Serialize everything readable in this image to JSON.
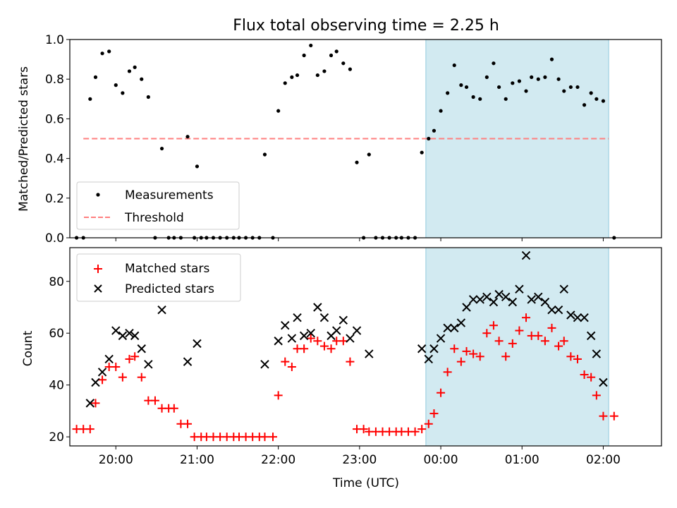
{
  "chart_data": [
    {
      "type": "scatter",
      "title": "Flux total observing time = 2.25 h",
      "xlabel": "",
      "ylabel": "Matched/Predicted stars",
      "ylim": [
        0.0,
        1.0
      ],
      "yticks": [
        "0.0",
        "0.2",
        "0.4",
        "0.6",
        "0.8",
        "1.0"
      ],
      "xlim": [
        "19:26",
        "02:43"
      ],
      "legend_position": "lower-left",
      "shaded_interval": [
        "23:49",
        "02:04"
      ],
      "shaded_color": "#add8e6",
      "threshold": {
        "name": "Threshold",
        "value": 0.5,
        "x": [
          "19:36",
          "02:04"
        ],
        "color": "#ff7f7f",
        "style": "dashed"
      },
      "series": [
        {
          "name": "Measurements",
          "marker": "dot",
          "color": "#000000",
          "points": [
            [
              "19:31",
              0.0
            ],
            [
              "19:36",
              0.0
            ],
            [
              "19:41",
              0.7
            ],
            [
              "19:45",
              0.81
            ],
            [
              "19:50",
              0.93
            ],
            [
              "19:55",
              0.94
            ],
            [
              "20:00",
              0.77
            ],
            [
              "20:05",
              0.73
            ],
            [
              "20:10",
              0.84
            ],
            [
              "20:14",
              0.86
            ],
            [
              "20:19",
              0.8
            ],
            [
              "20:24",
              0.71
            ],
            [
              "20:29",
              0.0
            ],
            [
              "20:34",
              0.45
            ],
            [
              "20:39",
              0.0
            ],
            [
              "20:43",
              0.0
            ],
            [
              "20:48",
              0.0
            ],
            [
              "20:53",
              0.51
            ],
            [
              "20:58",
              0.0
            ],
            [
              "21:00",
              0.36
            ],
            [
              "21:03",
              0.0
            ],
            [
              "21:07",
              0.0
            ],
            [
              "21:12",
              0.0
            ],
            [
              "21:17",
              0.0
            ],
            [
              "21:22",
              0.0
            ],
            [
              "21:27",
              0.0
            ],
            [
              "21:31",
              0.0
            ],
            [
              "21:36",
              0.0
            ],
            [
              "21:41",
              0.0
            ],
            [
              "21:46",
              0.0
            ],
            [
              "21:50",
              0.42
            ],
            [
              "21:56",
              0.0
            ],
            [
              "22:00",
              0.64
            ],
            [
              "22:05",
              0.78
            ],
            [
              "22:10",
              0.81
            ],
            [
              "22:14",
              0.82
            ],
            [
              "22:19",
              0.92
            ],
            [
              "22:24",
              0.97
            ],
            [
              "22:29",
              0.82
            ],
            [
              "22:34",
              0.84
            ],
            [
              "22:39",
              0.92
            ],
            [
              "22:43",
              0.94
            ],
            [
              "22:48",
              0.88
            ],
            [
              "22:53",
              0.85
            ],
            [
              "22:58",
              0.38
            ],
            [
              "23:03",
              0.0
            ],
            [
              "23:07",
              0.42
            ],
            [
              "23:12",
              0.0
            ],
            [
              "23:17",
              0.0
            ],
            [
              "23:22",
              0.0
            ],
            [
              "23:27",
              0.0
            ],
            [
              "23:31",
              0.0
            ],
            [
              "23:36",
              0.0
            ],
            [
              "23:41",
              0.0
            ],
            [
              "23:46",
              0.43
            ],
            [
              "23:51",
              0.5
            ],
            [
              "23:55",
              0.54
            ],
            [
              "00:00",
              0.64
            ],
            [
              "00:05",
              0.73
            ],
            [
              "00:10",
              0.87
            ],
            [
              "00:15",
              0.77
            ],
            [
              "00:19",
              0.76
            ],
            [
              "00:24",
              0.71
            ],
            [
              "00:29",
              0.7
            ],
            [
              "00:34",
              0.81
            ],
            [
              "00:39",
              0.88
            ],
            [
              "00:43",
              0.76
            ],
            [
              "00:48",
              0.7
            ],
            [
              "00:53",
              0.78
            ],
            [
              "00:58",
              0.79
            ],
            [
              "01:03",
              0.74
            ],
            [
              "01:07",
              0.81
            ],
            [
              "01:12",
              0.8
            ],
            [
              "01:17",
              0.81
            ],
            [
              "01:22",
              0.9
            ],
            [
              "01:27",
              0.8
            ],
            [
              "01:31",
              0.74
            ],
            [
              "01:36",
              0.76
            ],
            [
              "01:41",
              0.76
            ],
            [
              "01:46",
              0.67
            ],
            [
              "01:51",
              0.73
            ],
            [
              "01:55",
              0.7
            ],
            [
              "02:00",
              0.69
            ],
            [
              "02:08",
              0.0
            ]
          ]
        }
      ]
    },
    {
      "type": "scatter",
      "title": "",
      "xlabel": "Time (UTC)",
      "ylabel": "Count",
      "ylim": [
        16.5,
        93.0
      ],
      "yticks": [
        "20",
        "40",
        "60",
        "80"
      ],
      "xticks": [
        "20:00",
        "21:00",
        "22:00",
        "23:00",
        "00:00",
        "01:00",
        "02:00"
      ],
      "xlim": [
        "19:26",
        "02:43"
      ],
      "legend_position": "upper-left",
      "shaded_interval": [
        "23:49",
        "02:04"
      ],
      "shaded_color": "#add8e6",
      "series": [
        {
          "name": "Matched stars",
          "marker": "plus",
          "color": "#ff0000",
          "points": [
            [
              "19:31",
              23
            ],
            [
              "19:36",
              23
            ],
            [
              "19:41",
              23
            ],
            [
              "19:45",
              33
            ],
            [
              "19:50",
              42
            ],
            [
              "19:55",
              47
            ],
            [
              "20:00",
              47
            ],
            [
              "20:05",
              43
            ],
            [
              "20:10",
              50
            ],
            [
              "20:14",
              51
            ],
            [
              "20:19",
              43
            ],
            [
              "20:24",
              34
            ],
            [
              "20:29",
              34
            ],
            [
              "20:34",
              31
            ],
            [
              "20:39",
              31
            ],
            [
              "20:43",
              31
            ],
            [
              "20:48",
              25
            ],
            [
              "20:53",
              25
            ],
            [
              "20:58",
              20
            ],
            [
              "21:03",
              20
            ],
            [
              "21:07",
              20
            ],
            [
              "21:12",
              20
            ],
            [
              "21:17",
              20
            ],
            [
              "21:22",
              20
            ],
            [
              "21:27",
              20
            ],
            [
              "21:31",
              20
            ],
            [
              "21:36",
              20
            ],
            [
              "21:41",
              20
            ],
            [
              "21:46",
              20
            ],
            [
              "21:50",
              20
            ],
            [
              "21:56",
              20
            ],
            [
              "22:00",
              36
            ],
            [
              "22:05",
              49
            ],
            [
              "22:10",
              47
            ],
            [
              "22:14",
              54
            ],
            [
              "22:19",
              54
            ],
            [
              "22:24",
              58
            ],
            [
              "22:29",
              57
            ],
            [
              "22:34",
              55
            ],
            [
              "22:39",
              54
            ],
            [
              "22:43",
              57
            ],
            [
              "22:48",
              57
            ],
            [
              "22:53",
              49
            ],
            [
              "22:58",
              23
            ],
            [
              "23:03",
              23
            ],
            [
              "23:07",
              22
            ],
            [
              "23:12",
              22
            ],
            [
              "23:17",
              22
            ],
            [
              "23:22",
              22
            ],
            [
              "23:27",
              22
            ],
            [
              "23:31",
              22
            ],
            [
              "23:36",
              22
            ],
            [
              "23:41",
              22
            ],
            [
              "23:46",
              23
            ],
            [
              "23:51",
              25
            ],
            [
              "23:55",
              29
            ],
            [
              "00:00",
              37
            ],
            [
              "00:05",
              45
            ],
            [
              "00:10",
              54
            ],
            [
              "00:15",
              49
            ],
            [
              "00:19",
              53
            ],
            [
              "00:24",
              52
            ],
            [
              "00:29",
              51
            ],
            [
              "00:34",
              60
            ],
            [
              "00:39",
              63
            ],
            [
              "00:43",
              57
            ],
            [
              "00:48",
              51
            ],
            [
              "00:53",
              56
            ],
            [
              "00:58",
              61
            ],
            [
              "01:03",
              66
            ],
            [
              "01:07",
              59
            ],
            [
              "01:12",
              59
            ],
            [
              "01:17",
              57
            ],
            [
              "01:22",
              62
            ],
            [
              "01:27",
              55
            ],
            [
              "01:31",
              57
            ],
            [
              "01:36",
              51
            ],
            [
              "01:41",
              50
            ],
            [
              "01:46",
              44
            ],
            [
              "01:51",
              43
            ],
            [
              "01:55",
              36
            ],
            [
              "02:00",
              28
            ],
            [
              "02:08",
              28
            ]
          ]
        },
        {
          "name": "Predicted stars",
          "marker": "x",
          "color": "#000000",
          "points": [
            [
              "19:41",
              33
            ],
            [
              "19:45",
              41
            ],
            [
              "19:50",
              45
            ],
            [
              "19:55",
              50
            ],
            [
              "20:00",
              61
            ],
            [
              "20:05",
              59
            ],
            [
              "20:10",
              60
            ],
            [
              "20:14",
              59
            ],
            [
              "20:19",
              54
            ],
            [
              "20:24",
              48
            ],
            [
              "20:34",
              69
            ],
            [
              "20:53",
              49
            ],
            [
              "21:00",
              56
            ],
            [
              "21:50",
              48
            ],
            [
              "22:00",
              57
            ],
            [
              "22:05",
              63
            ],
            [
              "22:10",
              58
            ],
            [
              "22:14",
              66
            ],
            [
              "22:19",
              59
            ],
            [
              "22:24",
              60
            ],
            [
              "22:29",
              70
            ],
            [
              "22:34",
              66
            ],
            [
              "22:39",
              59
            ],
            [
              "22:43",
              61
            ],
            [
              "22:48",
              65
            ],
            [
              "22:53",
              58
            ],
            [
              "22:58",
              61
            ],
            [
              "23:07",
              52
            ],
            [
              "23:46",
              54
            ],
            [
              "23:51",
              50
            ],
            [
              "23:55",
              54
            ],
            [
              "00:00",
              58
            ],
            [
              "00:05",
              62
            ],
            [
              "00:10",
              62
            ],
            [
              "00:15",
              64
            ],
            [
              "00:19",
              70
            ],
            [
              "00:24",
              73
            ],
            [
              "00:29",
              73
            ],
            [
              "00:34",
              74
            ],
            [
              "00:39",
              72
            ],
            [
              "00:43",
              75
            ],
            [
              "00:48",
              74
            ],
            [
              "00:53",
              72
            ],
            [
              "00:58",
              77
            ],
            [
              "01:03",
              90
            ],
            [
              "01:07",
              73
            ],
            [
              "01:12",
              74
            ],
            [
              "01:17",
              72
            ],
            [
              "01:22",
              69
            ],
            [
              "01:27",
              69
            ],
            [
              "01:31",
              77
            ],
            [
              "01:36",
              67
            ],
            [
              "01:41",
              66
            ],
            [
              "01:46",
              66
            ],
            [
              "01:51",
              59
            ],
            [
              "01:55",
              52
            ],
            [
              "02:00",
              41
            ]
          ]
        }
      ]
    }
  ]
}
